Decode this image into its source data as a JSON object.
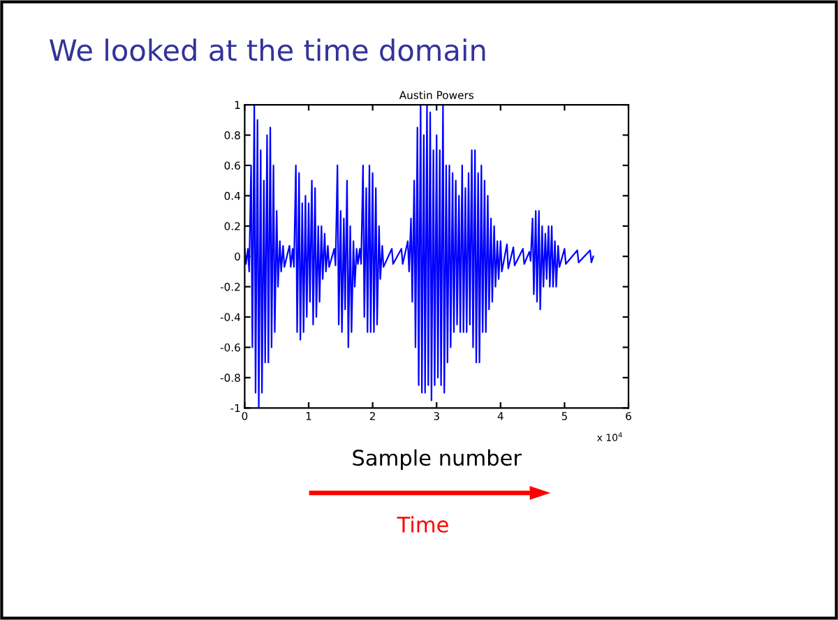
{
  "chart_data": {
    "type": "line",
    "title": "We looked at the time domain",
    "subtitle": "Austin Powers",
    "xlabel": "Sample number",
    "annotations": [
      "x 10$^{4}$",
      "Time"
    ],
    "xlim": [
      0,
      6
    ],
    "xticks": [
      0,
      1,
      2,
      3,
      4,
      5,
      6
    ],
    "ylim": [
      -1,
      1
    ],
    "yticks": [
      -1,
      -0.8,
      -0.6,
      -0.4,
      -0.2,
      0,
      0.2,
      0.4,
      0.6,
      0.8,
      1
    ],
    "grid": false,
    "marker": "none",
    "line_style": "solid",
    "series": [
      {
        "color": "#0000ff",
        "x": [
          0,
          0.02,
          0.05,
          0.07,
          0.1,
          0.12,
          0.15,
          0.17,
          0.2,
          0.22,
          0.25,
          0.27,
          0.3,
          0.32,
          0.35,
          0.37,
          0.4,
          0.42,
          0.45,
          0.47,
          0.5,
          0.52,
          0.55,
          0.57,
          0.6,
          0.62,
          0.7,
          0.72,
          0.75,
          0.77,
          0.8,
          0.82,
          0.85,
          0.87,
          0.9,
          0.92,
          0.95,
          0.97,
          1.0,
          1.02,
          1.05,
          1.07,
          1.1,
          1.12,
          1.15,
          1.17,
          1.2,
          1.22,
          1.25,
          1.27,
          1.3,
          1.32,
          1.4,
          1.42,
          1.45,
          1.47,
          1.5,
          1.52,
          1.55,
          1.57,
          1.6,
          1.62,
          1.65,
          1.67,
          1.7,
          1.72,
          1.75,
          1.77,
          1.8,
          1.82,
          1.85,
          1.87,
          1.9,
          1.92,
          1.95,
          1.97,
          2.0,
          2.02,
          2.05,
          2.07,
          2.1,
          2.12,
          2.15,
          2.17,
          2.3,
          2.32,
          2.45,
          2.47,
          2.55,
          2.57,
          2.6,
          2.62,
          2.65,
          2.67,
          2.7,
          2.72,
          2.75,
          2.77,
          2.8,
          2.82,
          2.85,
          2.87,
          2.9,
          2.92,
          2.95,
          2.97,
          3.0,
          3.02,
          3.05,
          3.07,
          3.1,
          3.12,
          3.15,
          3.17,
          3.2,
          3.22,
          3.25,
          3.27,
          3.3,
          3.32,
          3.35,
          3.37,
          3.4,
          3.42,
          3.45,
          3.47,
          3.5,
          3.52,
          3.55,
          3.57,
          3.6,
          3.62,
          3.65,
          3.67,
          3.7,
          3.72,
          3.75,
          3.77,
          3.8,
          3.82,
          3.85,
          3.87,
          3.9,
          3.92,
          3.95,
          3.97,
          4.0,
          4.02,
          4.1,
          4.12,
          4.2,
          4.22,
          4.35,
          4.37,
          4.45,
          4.47,
          4.5,
          4.52,
          4.55,
          4.57,
          4.6,
          4.62,
          4.65,
          4.67,
          4.7,
          4.72,
          4.75,
          4.77,
          4.8,
          4.82,
          4.85,
          4.87,
          4.9,
          4.92,
          5.0,
          5.02,
          5.2,
          5.22,
          5.4,
          5.42,
          5.45
        ],
        "values": [
          0.05,
          -0.05,
          0.05,
          -0.1,
          0.6,
          -0.6,
          1.0,
          -0.9,
          0.9,
          -1.0,
          0.7,
          -0.9,
          0.5,
          -0.7,
          0.8,
          -0.7,
          0.85,
          -0.6,
          0.6,
          -0.5,
          0.3,
          -0.2,
          0.1,
          -0.1,
          0.07,
          -0.07,
          0.07,
          -0.07,
          0.05,
          -0.07,
          0.6,
          -0.5,
          0.55,
          -0.55,
          0.35,
          -0.5,
          0.4,
          -0.4,
          0.35,
          -0.3,
          0.5,
          -0.45,
          0.45,
          -0.4,
          0.2,
          -0.3,
          0.2,
          -0.15,
          0.15,
          -0.1,
          0.07,
          -0.07,
          0.05,
          -0.06,
          0.6,
          -0.45,
          0.3,
          -0.5,
          0.25,
          -0.35,
          0.5,
          -0.6,
          0.2,
          -0.5,
          0.1,
          -0.2,
          0.05,
          -0.05,
          0.05,
          -0.05,
          0.6,
          -0.4,
          0.45,
          -0.5,
          0.6,
          -0.5,
          0.55,
          -0.5,
          0.45,
          -0.45,
          0.2,
          -0.15,
          0.07,
          -0.07,
          0.05,
          -0.05,
          0.05,
          -0.05,
          0.1,
          -0.1,
          0.25,
          -0.3,
          0.5,
          -0.6,
          0.85,
          -0.85,
          1.0,
          -0.9,
          0.8,
          -0.9,
          1.0,
          -0.85,
          0.95,
          -0.95,
          0.7,
          -0.85,
          0.8,
          -0.8,
          0.7,
          -0.85,
          1.0,
          -0.9,
          0.6,
          -0.7,
          0.6,
          -0.6,
          0.55,
          -0.5,
          0.5,
          -0.45,
          0.4,
          -0.5,
          0.6,
          -0.5,
          0.45,
          -0.5,
          0.55,
          -0.45,
          0.7,
          -0.6,
          0.7,
          -0.7,
          0.55,
          -0.7,
          0.6,
          -0.5,
          0.5,
          -0.5,
          0.4,
          -0.35,
          0.25,
          -0.3,
          0.2,
          -0.2,
          0.1,
          -0.15,
          0.1,
          -0.1,
          0.08,
          -0.08,
          0.06,
          -0.06,
          0.05,
          -0.05,
          0.03,
          -0.03,
          0.25,
          -0.25,
          0.3,
          -0.3,
          0.3,
          -0.35,
          0.2,
          -0.2,
          0.15,
          -0.15,
          0.2,
          -0.2,
          0.2,
          -0.2,
          0.1,
          -0.2,
          0.07,
          -0.07,
          0.05,
          -0.05,
          0.04,
          -0.04,
          0.04,
          -0.04,
          0.0
        ]
      }
    ]
  }
}
